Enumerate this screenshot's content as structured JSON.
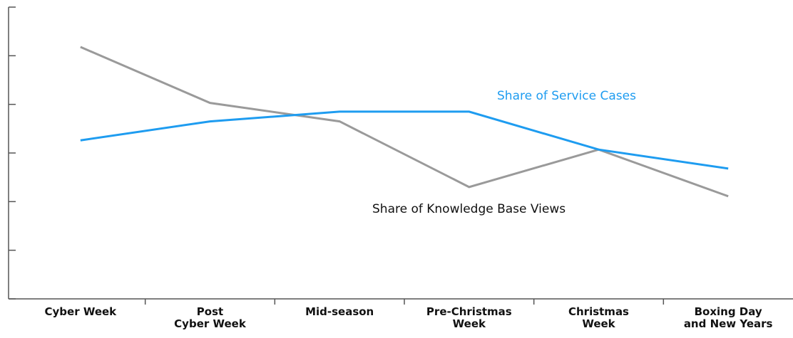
{
  "chart_data": {
    "type": "line",
    "categories": [
      "Cyber Week",
      "Post\nCyber Week",
      "Mid-season",
      "Pre-Christmas\nWeek",
      "Christmas\nWeek",
      "Boxing Day\nand New Years"
    ],
    "series": [
      {
        "name": "Share of Knowledge Base Views",
        "color": "#9a9a9a",
        "values": [
          5.18,
          4.03,
          3.65,
          2.3,
          3.07,
          2.11
        ]
      },
      {
        "name": "Share of Service Cases",
        "color": "#1e9cf0",
        "values": [
          3.26,
          3.65,
          3.85,
          3.85,
          3.07,
          2.68
        ]
      }
    ],
    "ylim": [
      0,
      6
    ],
    "yticks": [
      0,
      1,
      2,
      3,
      4,
      5,
      6
    ]
  }
}
